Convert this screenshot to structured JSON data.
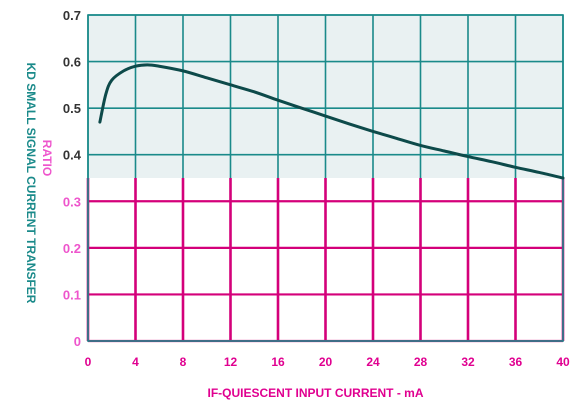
{
  "chart_data": {
    "type": "line",
    "title": "",
    "xlabel": "IF-QUIESCENT INPUT CURRENT - mA",
    "ylabel_line1": "KD SMALL SIGNAL CURRENT TRANSFER",
    "ylabel_line2": "RATIO",
    "xlim": [
      0,
      40
    ],
    "ylim": [
      0,
      0.7
    ],
    "x_ticks": [
      "0",
      "4",
      "8",
      "12",
      "16",
      "20",
      "24",
      "28",
      "32",
      "36",
      "40"
    ],
    "y_ticks": [
      "0",
      "0.1",
      "0.2",
      "0.3",
      "0.4",
      "0.5",
      "0.6",
      "0.7"
    ],
    "grid": true,
    "series": [
      {
        "x": [
          1,
          1.5,
          2,
          3,
          4,
          5,
          6,
          8,
          10,
          12,
          14,
          16,
          18,
          20,
          22,
          24,
          26,
          28,
          30,
          32,
          34,
          36,
          38,
          40
        ],
        "y": [
          0.47,
          0.53,
          0.56,
          0.58,
          0.59,
          0.593,
          0.59,
          0.58,
          0.565,
          0.55,
          0.535,
          0.517,
          0.5,
          0.483,
          0.466,
          0.45,
          0.435,
          0.42,
          0.408,
          0.396,
          0.385,
          0.373,
          0.362,
          0.35
        ]
      }
    ],
    "colors": {
      "line": "#0d4a4a",
      "grid_upper": "#1a8a8a",
      "grid_lower": "#d4007a",
      "upper_band_bg": "#e9f1f2",
      "lower_band_bg": "#ffffff",
      "y_tick_upper": "#333333",
      "y_tick_lower": "#ee55cc",
      "axis_text": "#e00090",
      "y_title_line1": "#1a8a8a",
      "y_title_line2": "#ee55cc"
    }
  }
}
